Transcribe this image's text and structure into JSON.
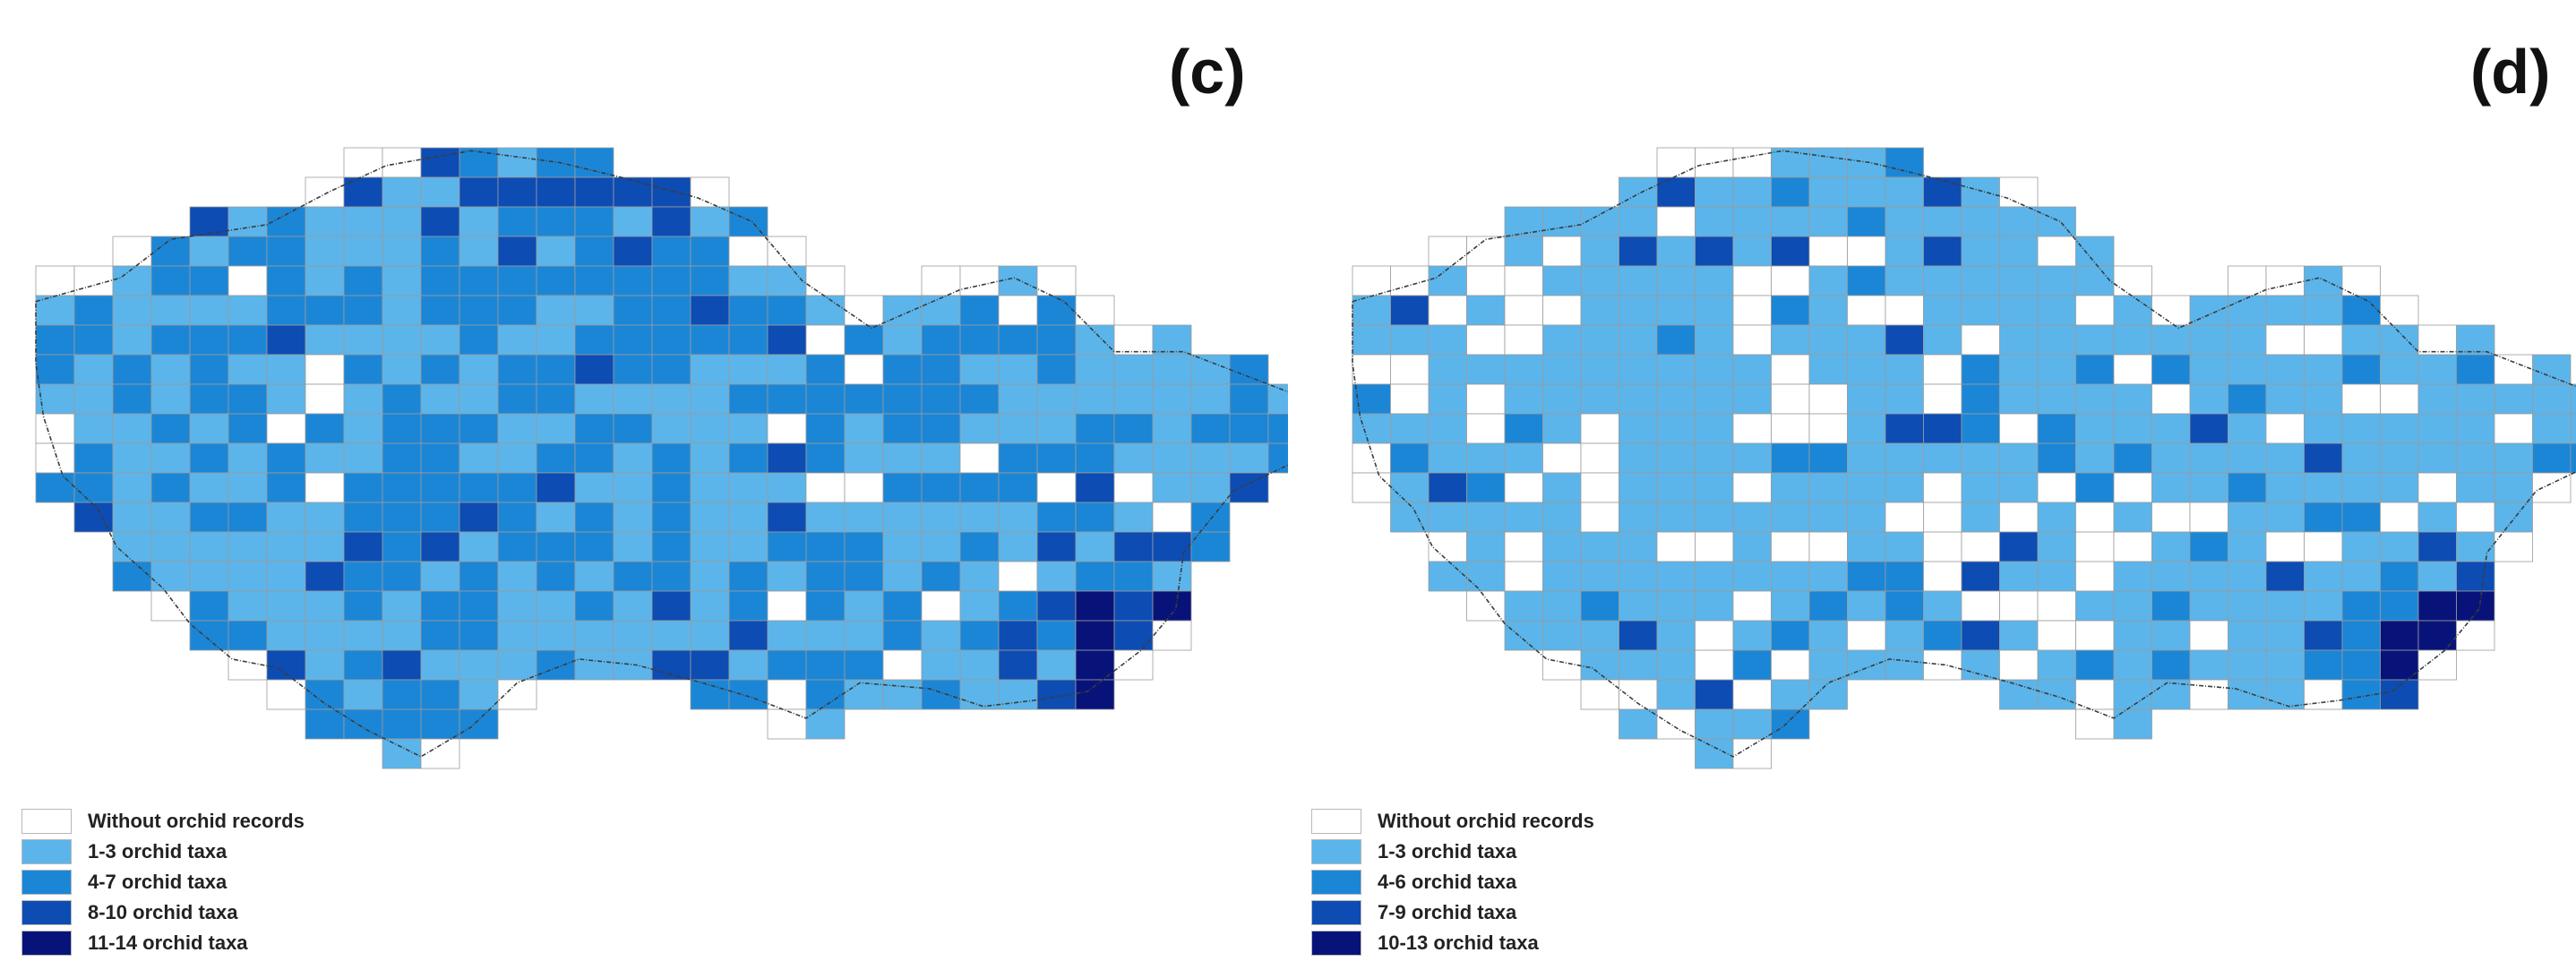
{
  "colors": {
    "empty": "#ffffff",
    "class1": "#5bb5ea",
    "class2": "#1c86d6",
    "class3": "#0d4cb3",
    "class4": "#08137a",
    "grid": "#9c9c9c",
    "border": "#3c3c3c"
  },
  "panels": [
    {
      "label": "(c)",
      "legend": [
        {
          "text": "Without orchid records",
          "cls": "empty"
        },
        {
          "text": "1-3 orchid taxa",
          "cls": "class1"
        },
        {
          "text": "4-7 orchid taxa",
          "cls": "class2"
        },
        {
          "text": "8-10 orchid taxa",
          "cls": "class3"
        },
        {
          "text": "11-14 orchid taxa",
          "cls": "class4"
        }
      ]
    },
    {
      "label": "(d)",
      "legend": [
        {
          "text": "Without orchid records",
          "cls": "empty"
        },
        {
          "text": "1-3 orchid taxa",
          "cls": "class1"
        },
        {
          "text": "4-6 orchid taxa",
          "cls": "class2"
        },
        {
          "text": "7-9 orchid taxa",
          "cls": "class3"
        },
        {
          "text": "10-13 orchid taxa",
          "cls": "class4"
        }
      ]
    }
  ]
}
